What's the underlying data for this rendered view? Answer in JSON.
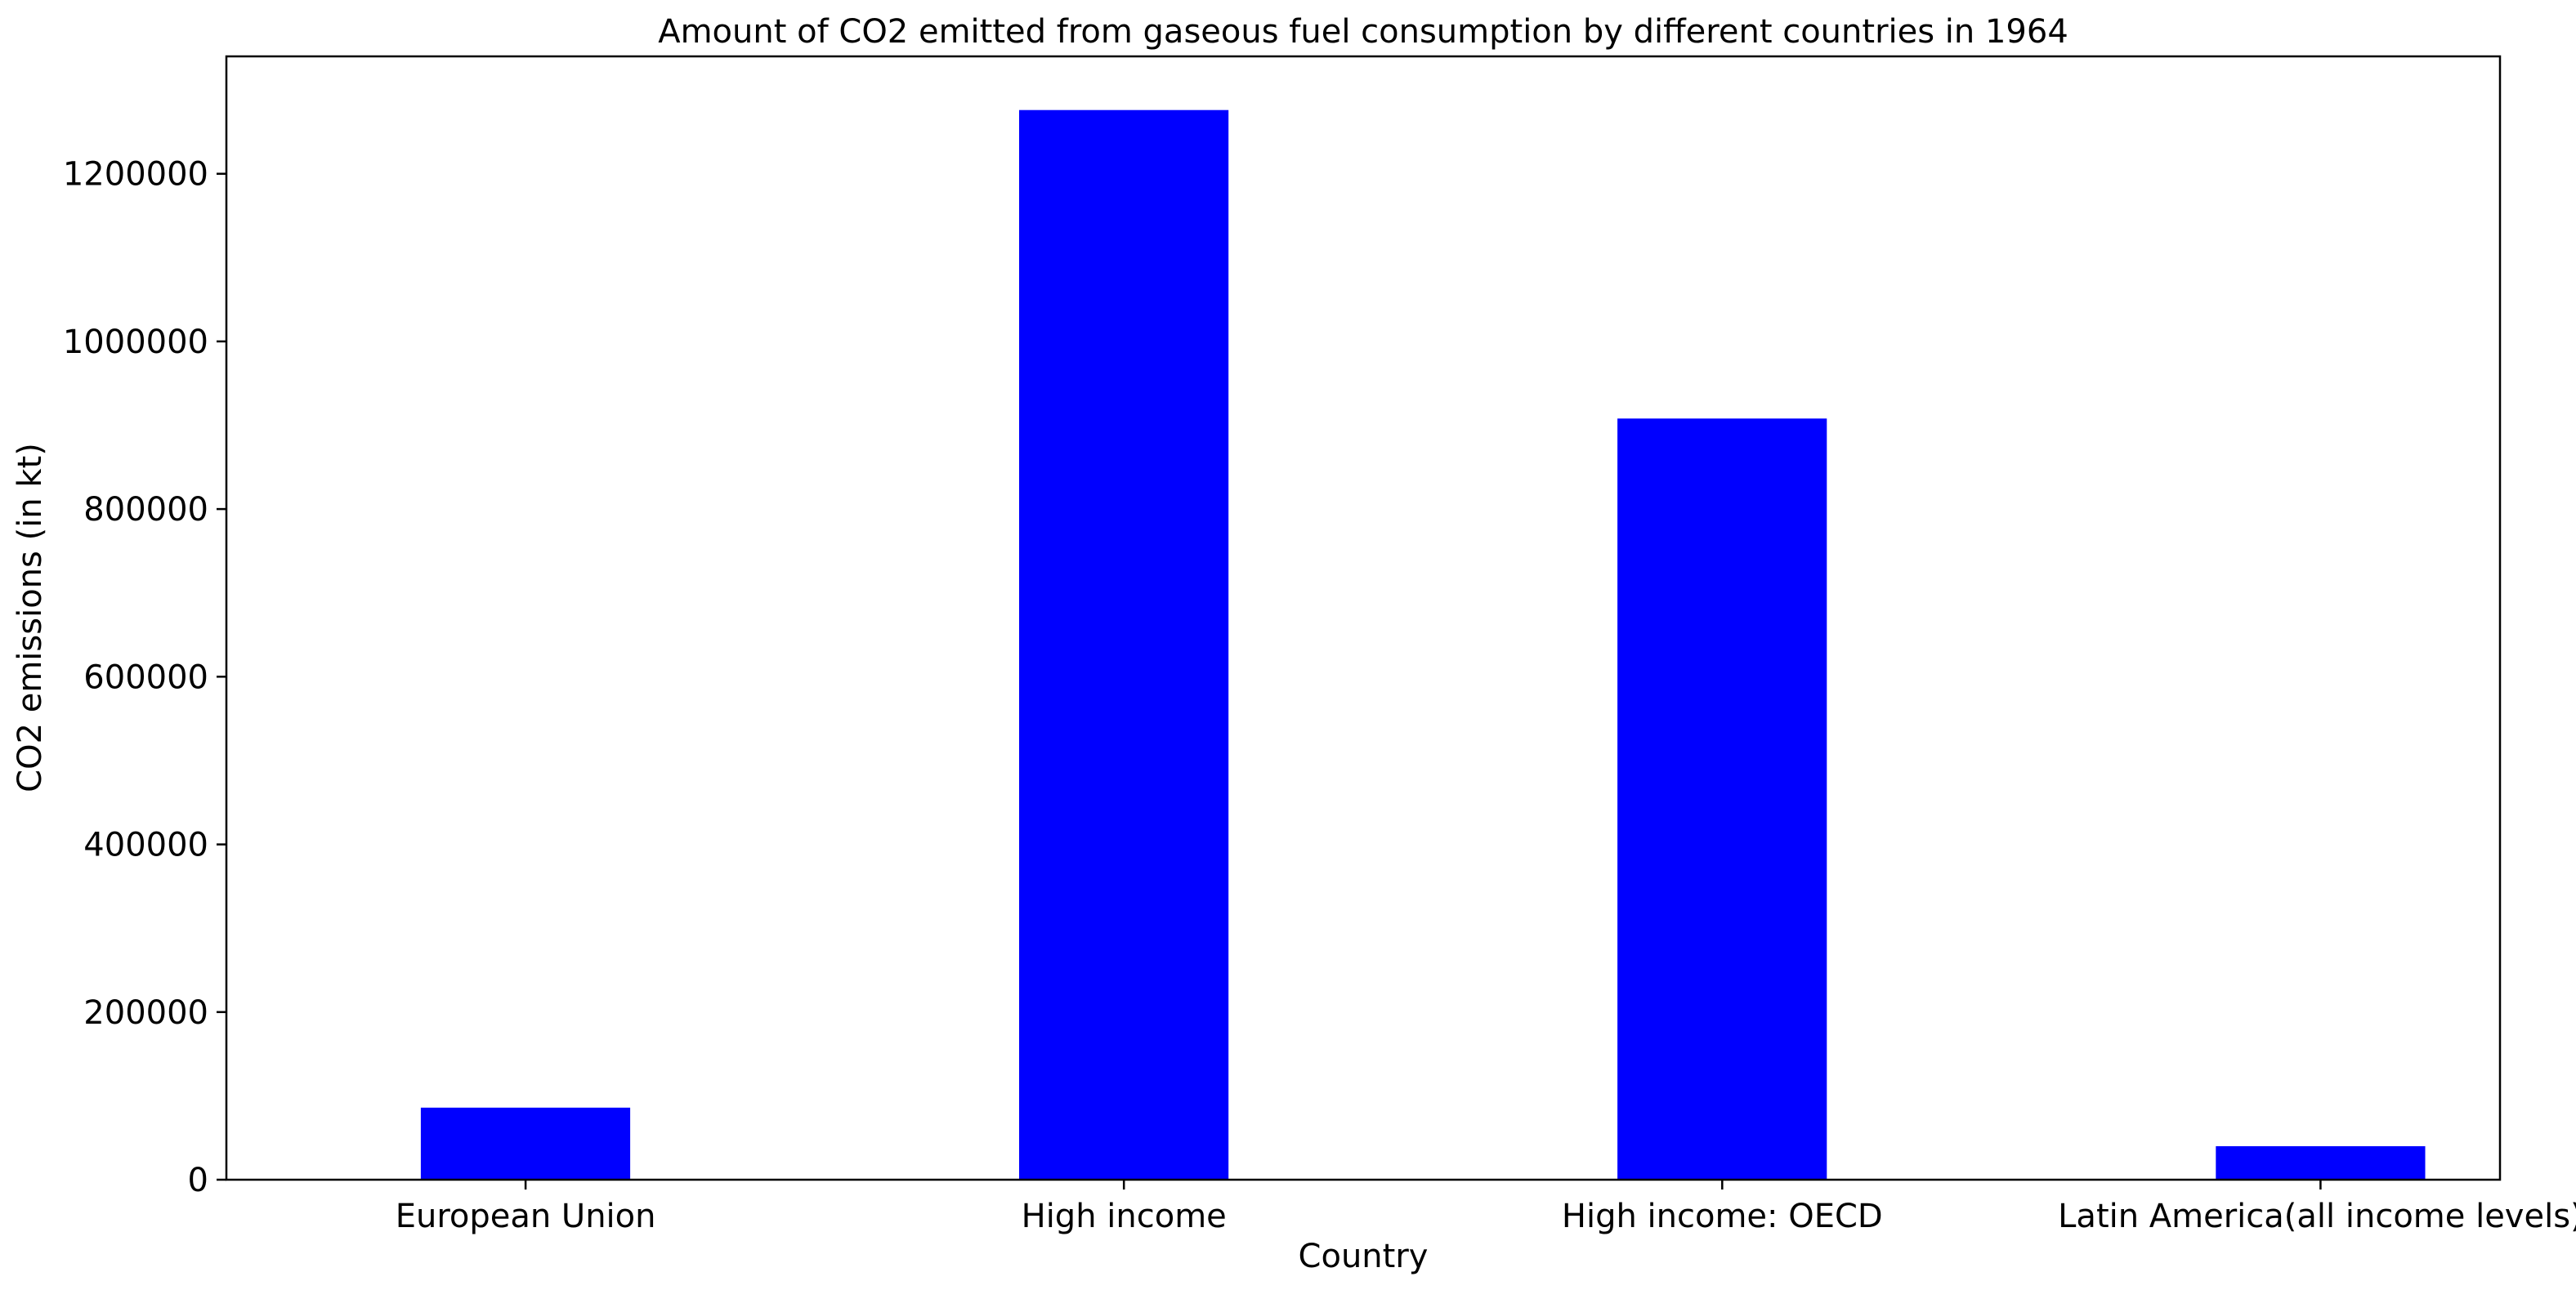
{
  "chart_data": {
    "type": "bar",
    "title": "Amount of CO2 emitted from gaseous fuel consumption by different countries in 1964",
    "xlabel": "Country",
    "ylabel": "CO2 emissions (in kt)",
    "categories": [
      "European Union",
      "High income",
      "High income: OECD",
      "Latin America(all income levels)"
    ],
    "values": [
      86000,
      1276000,
      908000,
      40000
    ],
    "ylim": [
      0,
      1340000
    ],
    "yticks": [
      0,
      200000,
      400000,
      600000,
      800000,
      1000000,
      1200000
    ],
    "ytick_labels": [
      "0",
      "200000",
      "400000",
      "600000",
      "800000",
      "1000000",
      "1200000"
    ],
    "bar_color": "#0000ff",
    "grid": false,
    "legend": "none"
  }
}
